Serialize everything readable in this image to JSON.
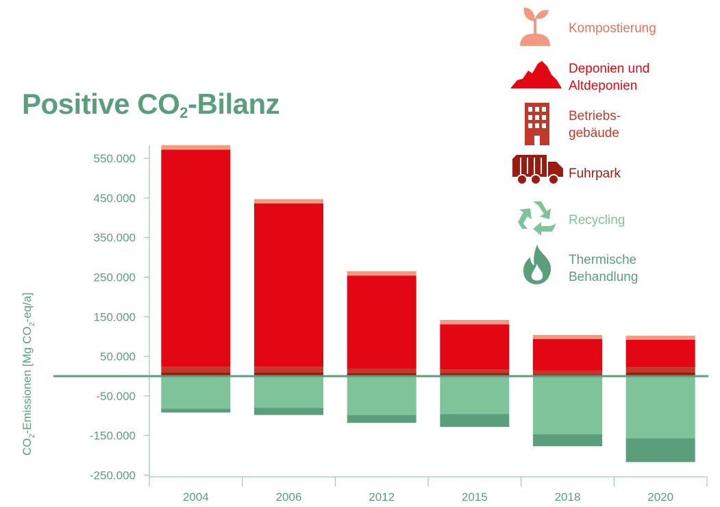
{
  "title": {
    "main": "Positive CO",
    "sub": "2",
    "rest": "-Bilanz"
  },
  "chart_data": {
    "type": "bar",
    "stacked": true,
    "title": "Positive CO2-Bilanz",
    "ylabel": {
      "pre": "CO",
      "sub1": "2",
      "mid": "-Emissionen [Mg CO",
      "sub2": "2",
      "post": "-eq/a]"
    },
    "categories": [
      "2004",
      "2006",
      "2012",
      "2015",
      "2018",
      "2020"
    ],
    "ylim": [
      -280000,
      600000
    ],
    "yticks": [
      -250000,
      -150000,
      -50000,
      50000,
      150000,
      250000,
      350000,
      450000,
      550000
    ],
    "ytick_labels": [
      "-250.000",
      "-150.000",
      "-50.000",
      "50.000",
      "150.000",
      "250.000",
      "350.000",
      "450.000",
      "550.000"
    ],
    "series": [
      {
        "name": "Fuhrpark",
        "color": "#9b1b10",
        "values": [
          10000,
          10000,
          8000,
          8000,
          5000,
          10000
        ]
      },
      {
        "name": "Betriebsgebäude",
        "color": "#c0392b",
        "values": [
          14000,
          14000,
          10000,
          9000,
          9000,
          12000
        ]
      },
      {
        "name": "Deponien und Altdeponien",
        "color": "#e30613",
        "values": [
          548000,
          412000,
          236000,
          114000,
          80000,
          70000
        ]
      },
      {
        "name": "Kompostierung",
        "color": "#f29a80",
        "values": [
          11000,
          11000,
          11000,
          11000,
          10000,
          10000
        ]
      },
      {
        "name": "Recycling",
        "color": "#7ec39a",
        "values": [
          -82000,
          -80000,
          -98000,
          -96000,
          -147000,
          -157000
        ]
      },
      {
        "name": "Thermische Behandlung",
        "color": "#5a9e7c",
        "values": [
          -10000,
          -18000,
          -20000,
          -32000,
          -30000,
          -60000
        ]
      }
    ],
    "legend_position": "top-right"
  },
  "legend": [
    {
      "label": "Kompostierung",
      "color": "#e8735a",
      "icon": "sprout-icon"
    },
    {
      "label": "Deponien und Altdeponien",
      "line1": "Deponien und",
      "line2": "Altdeponien",
      "color": "#e30613",
      "icon": "landfill-mound-icon"
    },
    {
      "label": "Betriebsgebäude",
      "line1": "Betriebs-",
      "line2": "gebäude",
      "color": "#c0392b",
      "icon": "building-icon"
    },
    {
      "label": "Fuhrpark",
      "color": "#9b1b10",
      "icon": "garbage-truck-icon"
    },
    {
      "label": "Recycling",
      "color": "#7ec39a",
      "icon": "recycling-icon"
    },
    {
      "label": "Thermische Behandlung",
      "line1": "Thermische",
      "line2": "Behandlung",
      "color": "#5a9e7c",
      "icon": "flame-icon"
    }
  ]
}
